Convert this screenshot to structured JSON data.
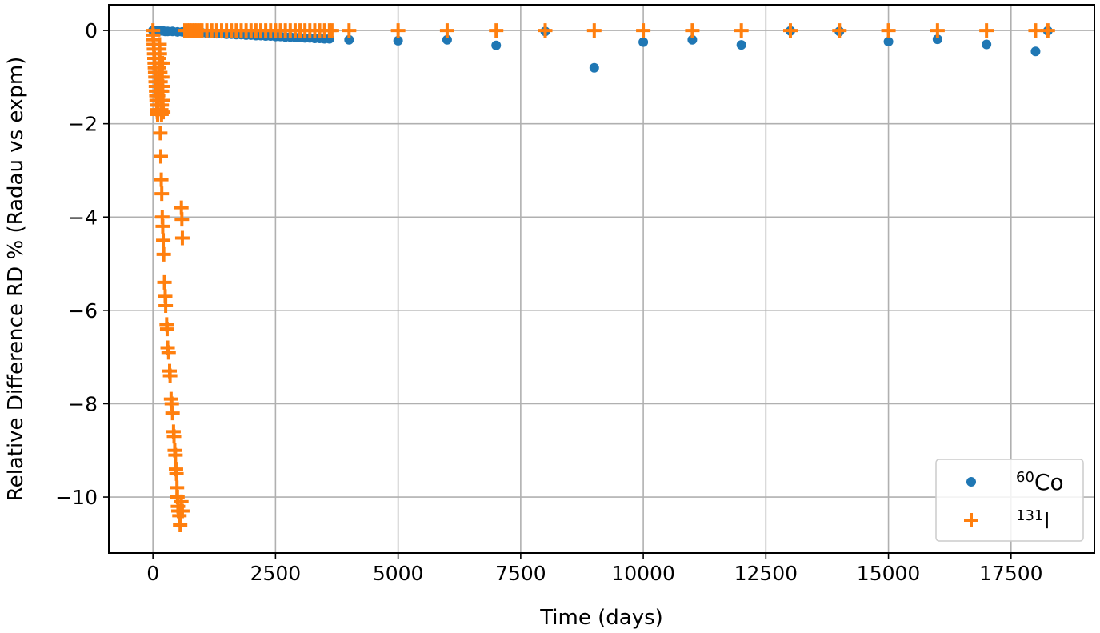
{
  "chart_data": {
    "type": "scatter",
    "title": "",
    "xlabel": "Time (days)",
    "ylabel": "Relative Difference RD % (Radau vs expm)",
    "xlim": [
      -900,
      19200
    ],
    "ylim": [
      -11.2,
      0.55
    ],
    "xticks": [
      0,
      2500,
      5000,
      7500,
      10000,
      12500,
      15000,
      17500
    ],
    "xtick_labels": [
      "0",
      "2500",
      "5000",
      "7500",
      "10000",
      "12500",
      "15000",
      "17500"
    ],
    "yticks": [
      0,
      -2,
      -4,
      -6,
      -8,
      -10
    ],
    "ytick_labels": [
      "0",
      "−2",
      "−4",
      "−6",
      "−8",
      "−10"
    ],
    "grid": true,
    "legend_position": "bottom-right",
    "series": [
      {
        "name_sup": "60",
        "name_main": "Co",
        "marker": "circle",
        "color": "#1f77b4",
        "points": [
          [
            0,
            0
          ],
          [
            10,
            0
          ],
          [
            20,
            0
          ],
          [
            30,
            0
          ],
          [
            40,
            0
          ],
          [
            60,
            0
          ],
          [
            80,
            0
          ],
          [
            100,
            -0.01
          ],
          [
            150,
            -0.01
          ],
          [
            200,
            -0.01
          ],
          [
            250,
            -0.02
          ],
          [
            300,
            -0.02
          ],
          [
            400,
            -0.02
          ],
          [
            500,
            -0.03
          ],
          [
            600,
            -0.03
          ],
          [
            700,
            -0.04
          ],
          [
            800,
            -0.04
          ],
          [
            900,
            -0.05
          ],
          [
            1000,
            -0.05
          ],
          [
            1100,
            -0.06
          ],
          [
            1200,
            -0.06
          ],
          [
            1300,
            -0.07
          ],
          [
            1400,
            -0.07
          ],
          [
            1500,
            -0.08
          ],
          [
            1600,
            -0.08
          ],
          [
            1700,
            -0.09
          ],
          [
            1800,
            -0.09
          ],
          [
            1900,
            -0.1
          ],
          [
            2000,
            -0.1
          ],
          [
            2100,
            -0.11
          ],
          [
            2200,
            -0.11
          ],
          [
            2300,
            -0.12
          ],
          [
            2400,
            -0.12
          ],
          [
            2500,
            -0.13
          ],
          [
            2600,
            -0.13
          ],
          [
            2700,
            -0.14
          ],
          [
            2800,
            -0.14
          ],
          [
            2900,
            -0.15
          ],
          [
            3000,
            -0.15
          ],
          [
            3100,
            -0.16
          ],
          [
            3200,
            -0.16
          ],
          [
            3300,
            -0.17
          ],
          [
            3400,
            -0.17
          ],
          [
            3500,
            -0.18
          ],
          [
            3600,
            -0.18
          ],
          [
            4000,
            -0.2
          ],
          [
            5000,
            -0.22
          ],
          [
            6000,
            -0.2
          ],
          [
            7000,
            -0.32
          ],
          [
            8000,
            -0.02
          ],
          [
            9000,
            -0.8
          ],
          [
            10000,
            -0.25
          ],
          [
            11000,
            -0.2
          ],
          [
            12000,
            -0.31
          ],
          [
            13000,
            -0.01
          ],
          [
            14000,
            -0.02
          ],
          [
            15000,
            -0.24
          ],
          [
            16000,
            -0.19
          ],
          [
            17000,
            -0.3
          ],
          [
            18000,
            -0.45
          ],
          [
            18250,
            -0.01
          ]
        ]
      },
      {
        "name_sup": "131",
        "name_main": "I",
        "marker": "plus",
        "color": "#ff7f0e",
        "points": [
          [
            0,
            0
          ],
          [
            5,
            -0.1
          ],
          [
            10,
            -0.2
          ],
          [
            15,
            -0.3
          ],
          [
            20,
            -0.4
          ],
          [
            25,
            -0.5
          ],
          [
            30,
            -0.6
          ],
          [
            35,
            -0.7
          ],
          [
            40,
            -0.8
          ],
          [
            45,
            -0.9
          ],
          [
            50,
            -1.0
          ],
          [
            55,
            -1.1
          ],
          [
            60,
            -1.2
          ],
          [
            65,
            -1.3
          ],
          [
            70,
            -1.4
          ],
          [
            75,
            -1.5
          ],
          [
            80,
            -1.6
          ],
          [
            85,
            -1.7
          ],
          [
            90,
            -1.75
          ],
          [
            95,
            -1.8
          ],
          [
            100,
            -1.6
          ],
          [
            105,
            -1.4
          ],
          [
            110,
            -1.2
          ],
          [
            115,
            -1.0
          ],
          [
            120,
            -0.8
          ],
          [
            125,
            -0.6
          ],
          [
            130,
            -0.4
          ],
          [
            135,
            -0.3
          ],
          [
            140,
            -0.5
          ],
          [
            145,
            -0.7
          ],
          [
            150,
            -0.9
          ],
          [
            155,
            -1.1
          ],
          [
            160,
            -1.3
          ],
          [
            165,
            -1.5
          ],
          [
            170,
            -1.7
          ],
          [
            175,
            -1.8
          ],
          [
            180,
            -1.6
          ],
          [
            185,
            -1.3
          ],
          [
            190,
            -1.0
          ],
          [
            195,
            -0.7
          ],
          [
            200,
            -1.2
          ],
          [
            205,
            -1.5
          ],
          [
            210,
            -1.75
          ],
          [
            150,
            -2.2
          ],
          [
            160,
            -2.7
          ],
          [
            170,
            -3.2
          ],
          [
            180,
            -3.5
          ],
          [
            190,
            -4.0
          ],
          [
            200,
            -4.2
          ],
          [
            210,
            -4.5
          ],
          [
            220,
            -4.8
          ],
          [
            235,
            -5.4
          ],
          [
            250,
            -5.7
          ],
          [
            260,
            -5.9
          ],
          [
            280,
            -6.3
          ],
          [
            290,
            -6.4
          ],
          [
            300,
            -6.8
          ],
          [
            320,
            -6.9
          ],
          [
            340,
            -7.3
          ],
          [
            350,
            -7.4
          ],
          [
            370,
            -7.9
          ],
          [
            385,
            -8.0
          ],
          [
            400,
            -8.2
          ],
          [
            420,
            -8.6
          ],
          [
            430,
            -8.7
          ],
          [
            445,
            -9.0
          ],
          [
            460,
            -9.1
          ],
          [
            470,
            -9.4
          ],
          [
            480,
            -9.5
          ],
          [
            490,
            -9.8
          ],
          [
            500,
            -10.0
          ],
          [
            510,
            -10.2
          ],
          [
            520,
            -10.3
          ],
          [
            540,
            -10.4
          ],
          [
            555,
            -10.6
          ],
          [
            580,
            -10.1
          ],
          [
            600,
            -10.3
          ],
          [
            580,
            -3.8
          ],
          [
            590,
            -4.05
          ],
          [
            600,
            -4.45
          ],
          [
            650,
            0
          ],
          [
            700,
            0
          ],
          [
            750,
            0
          ],
          [
            800,
            0
          ],
          [
            850,
            0
          ],
          [
            900,
            0
          ],
          [
            950,
            0
          ],
          [
            1000,
            0
          ],
          [
            1100,
            0
          ],
          [
            1200,
            0
          ],
          [
            1300,
            0
          ],
          [
            1400,
            0
          ],
          [
            1500,
            0
          ],
          [
            1600,
            0
          ],
          [
            1700,
            0
          ],
          [
            1800,
            0
          ],
          [
            1900,
            0
          ],
          [
            2000,
            0
          ],
          [
            2100,
            0
          ],
          [
            2200,
            0
          ],
          [
            2300,
            0
          ],
          [
            2400,
            0
          ],
          [
            2500,
            0
          ],
          [
            2600,
            0
          ],
          [
            2700,
            0
          ],
          [
            2800,
            0
          ],
          [
            2900,
            0
          ],
          [
            3000,
            0
          ],
          [
            3100,
            0
          ],
          [
            3200,
            0
          ],
          [
            3300,
            0
          ],
          [
            3400,
            0
          ],
          [
            3500,
            0
          ],
          [
            3600,
            0
          ],
          [
            3650,
            0
          ],
          [
            4000,
            0
          ],
          [
            5000,
            0
          ],
          [
            6000,
            0
          ],
          [
            7000,
            0
          ],
          [
            8000,
            0
          ],
          [
            9000,
            0
          ],
          [
            10000,
            0
          ],
          [
            11000,
            0
          ],
          [
            12000,
            0
          ],
          [
            13000,
            0
          ],
          [
            14000,
            0
          ],
          [
            15000,
            0
          ],
          [
            16000,
            0
          ],
          [
            17000,
            0
          ],
          [
            18000,
            0
          ],
          [
            18250,
            0
          ]
        ]
      }
    ]
  }
}
